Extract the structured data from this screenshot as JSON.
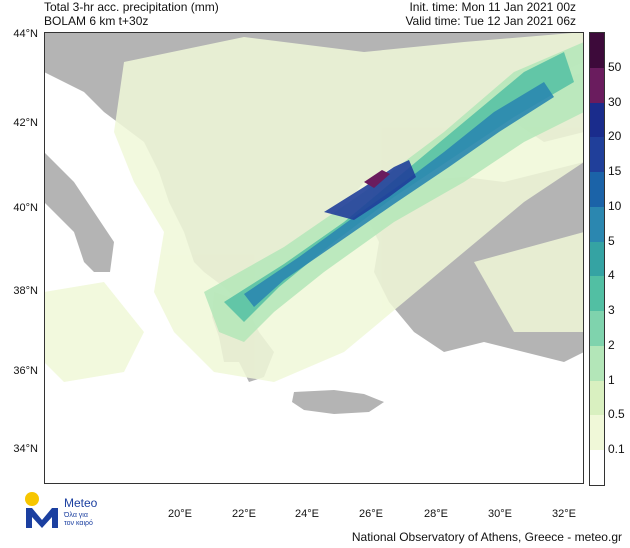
{
  "header": {
    "title_line1": "Total 3-hr acc. precipitation (mm)",
    "title_line2": "BOLAM 6 km t+30z",
    "init_time": "Init. time: Mon 11 Jan 2021 00z",
    "valid_time": "Valid time: Tue 12 Jan 2021 06z"
  },
  "axes": {
    "lat_labels": [
      "44°N",
      "42°N",
      "40°N",
      "38°N",
      "36°N",
      "34°N"
    ],
    "lon_labels": [
      "20°E",
      "22°E",
      "24°E",
      "26°E",
      "28°E",
      "30°E",
      "32°E"
    ]
  },
  "colorbar": {
    "labels": [
      "50",
      "30",
      "20",
      "15",
      "10",
      "5",
      "4",
      "3",
      "2",
      "1",
      "0.5",
      "0.1"
    ],
    "colors": [
      "#3d0a3a",
      "#6a1c5e",
      "#1a2c8c",
      "#203f9a",
      "#1b63a8",
      "#2b87b0",
      "#35a3a3",
      "#52bfa3",
      "#7fd3ad",
      "#b3e6b8",
      "#d9f0c0",
      "#f0f8d8",
      "#ffffff"
    ]
  },
  "logo": {
    "name": "Meteo",
    "tagline_line1": "Όλα για",
    "tagline_line2": "τον καιρό"
  },
  "footer": {
    "credit": "National Observatory of Athens, Greece - meteo.gr"
  }
}
